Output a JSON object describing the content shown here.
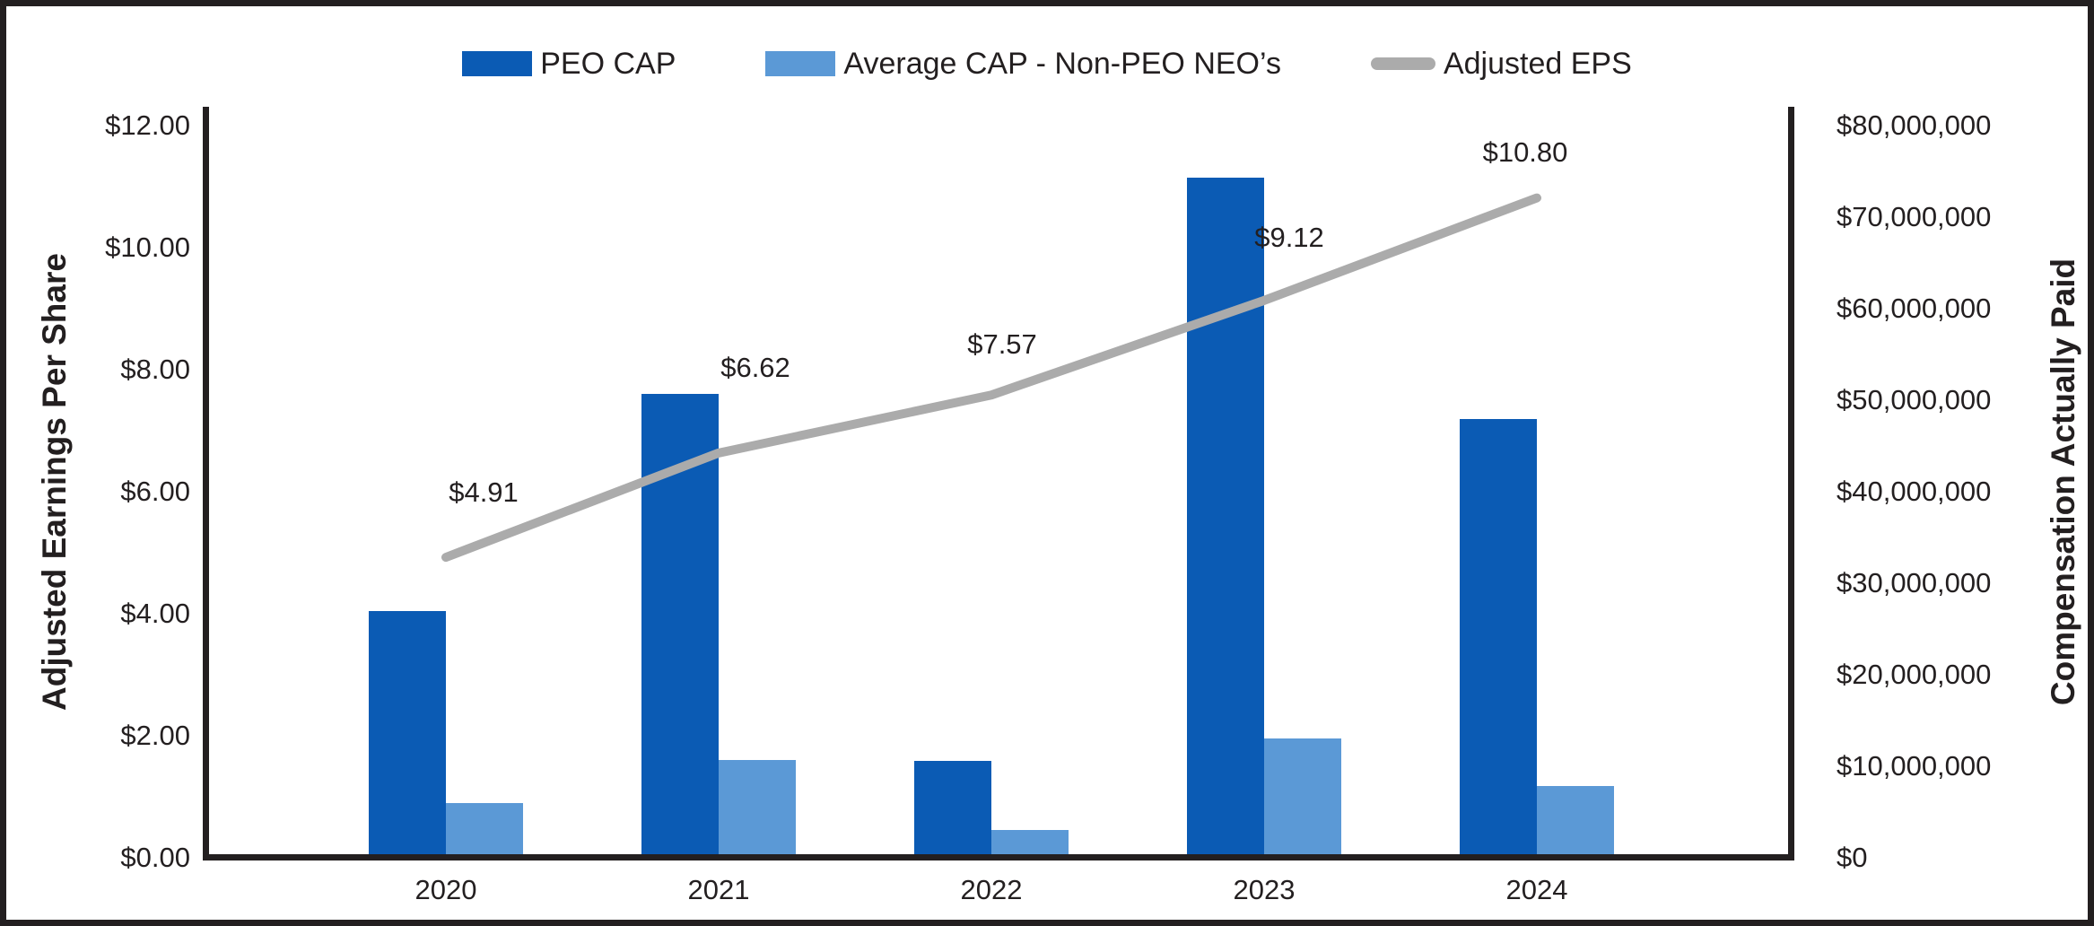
{
  "colors": {
    "peo_cap_bar": "#0B5BB4",
    "avg_cap_bar": "#5B99D6",
    "eps_line": "#ABABAB",
    "text": "#231F20",
    "frame": "#231F20"
  },
  "legend": {
    "items": [
      {
        "label": "PEO CAP",
        "swatch": "rect",
        "color": "#0B5BB4"
      },
      {
        "label": "Average CAP - Non-PEO NEO’s",
        "swatch": "rect",
        "color": "#5B99D6"
      },
      {
        "label": "Adjusted EPS",
        "swatch": "line",
        "color": "#ABABAB"
      }
    ]
  },
  "chart_data": {
    "type": "combo_bar_line",
    "categories": [
      "2020",
      "2021",
      "2022",
      "2023",
      "2024"
    ],
    "series": [
      {
        "name": "PEO CAP",
        "type": "bar",
        "axis": "right",
        "color": "#0B5BB4",
        "values_usd": [
          26900000,
          50600000,
          10500000,
          74200000,
          47800000
        ]
      },
      {
        "name": "Average CAP - Non-PEO NEO’s",
        "type": "bar",
        "axis": "right",
        "color": "#5B99D6",
        "values_usd": [
          5900000,
          10600000,
          2900000,
          12900000,
          7700000
        ]
      },
      {
        "name": "Adjusted EPS",
        "type": "line",
        "axis": "left",
        "color": "#ABABAB",
        "values": [
          4.91,
          6.62,
          7.57,
          9.12,
          10.8
        ],
        "point_labels": [
          "$4.91",
          "$6.62",
          "$7.57",
          "$9.12",
          "$10.80"
        ]
      }
    ],
    "left_axis": {
      "title": "Adjusted Earnings Per Share",
      "range": [
        0,
        12
      ],
      "tick_step": 2,
      "tick_labels": [
        "$0.00",
        "$2.00",
        "$4.00",
        "$6.00",
        "$8.00",
        "$10.00",
        "$12.00"
      ]
    },
    "right_axis": {
      "title": "Compensation Actually Paid",
      "range": [
        0,
        80000000
      ],
      "tick_step": 10000000,
      "tick_labels": [
        "$0",
        "$10,000,000",
        "$20,000,000",
        "$30,000,000",
        "$40,000,000",
        "$50,000,000",
        "$60,000,000",
        "$70,000,000",
        "$80,000,000"
      ]
    },
    "x_axis": {
      "tick_labels": [
        "2020",
        "2021",
        "2022",
        "2023",
        "2024"
      ]
    },
    "legend_position": "top",
    "grid": false
  }
}
